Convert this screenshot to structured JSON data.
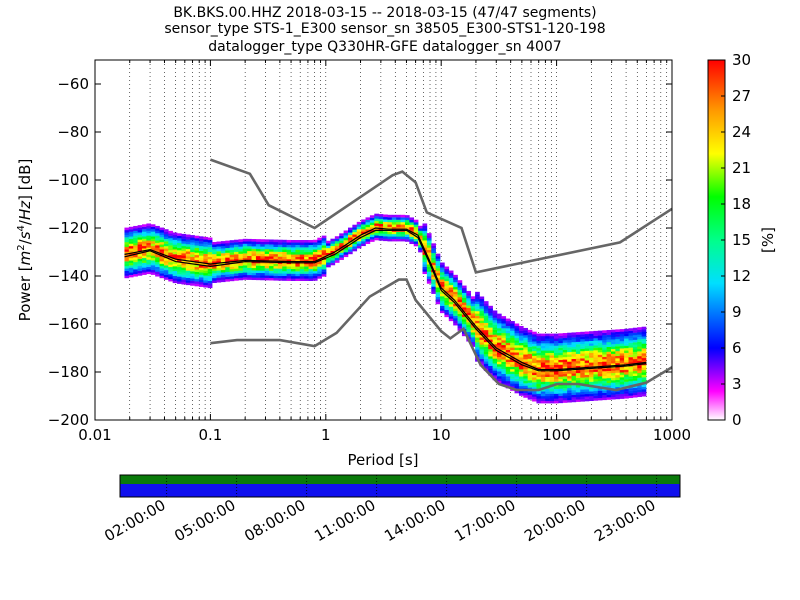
{
  "chart_data": {
    "type": "heatmap",
    "title": {
      "line1": "BK.BKS.00.HHZ   2018-03-15 -- 2018-03-15  (47/47 segments)",
      "line2": "sensor_type STS-1_E300 sensor_sn 38505_E300-STS1-120-198",
      "line3": "datalogger_type Q330HR-GFE datalogger_sn 4007"
    },
    "xlabel": "Period [s]",
    "ylabel": "Power [m²/s⁴/Hz] [dB]",
    "ylabel_parts": {
      "prefix": "Power ",
      "unit_open": "[",
      "m": "m",
      "m_exp": "2",
      "slash1": "/",
      "s": "s",
      "s_exp": "4",
      "slash2": "/",
      "hz": "Hz",
      "unit_close": "]",
      "db": " [dB]"
    },
    "xscale": "log",
    "xlim": [
      0.01,
      1000
    ],
    "ylim": [
      -200,
      -50
    ],
    "x_ticks": [
      0.01,
      0.1,
      1,
      10,
      100,
      1000
    ],
    "x_tick_labels": [
      "0.01",
      "0.1",
      "1",
      "10",
      "100",
      "1000"
    ],
    "y_ticks": [
      -200,
      -180,
      -160,
      -140,
      -120,
      -100,
      -80,
      -60
    ],
    "y_tick_labels": [
      "−200",
      "−180",
      "−160",
      "−140",
      "−120",
      "−100",
      "−80",
      "−60"
    ],
    "grid": "dotted (x only)",
    "colorbar": {
      "label": "[%]",
      "range": [
        0,
        30
      ],
      "ticks": [
        0,
        3,
        6,
        9,
        12,
        15,
        18,
        21,
        24,
        27,
        30
      ],
      "tick_labels": [
        "0",
        "3",
        "6",
        "9",
        "12",
        "15",
        "18",
        "21",
        "24",
        "27",
        "30"
      ]
    },
    "noise_model_high": [
      [
        0.1,
        -91.5
      ],
      [
        0.22,
        -97.4
      ],
      [
        0.32,
        -110.5
      ],
      [
        0.8,
        -120
      ],
      [
        3.8,
        -98
      ],
      [
        4.6,
        -96.5
      ],
      [
        6,
        -101
      ],
      [
        7.5,
        -113.5
      ],
      [
        15,
        -120
      ],
      [
        20,
        -138.5
      ],
      [
        354,
        -126
      ],
      [
        1000,
        -112
      ]
    ],
    "noise_model_low": [
      [
        0.1,
        -168
      ],
      [
        0.17,
        -166.7
      ],
      [
        0.4,
        -166.7
      ],
      [
        0.8,
        -169.2
      ],
      [
        1.24,
        -163.7
      ],
      [
        2.4,
        -148.6
      ],
      [
        4.3,
        -141.5
      ],
      [
        5,
        -141.5
      ],
      [
        6,
        -150
      ],
      [
        10,
        -163
      ],
      [
        12,
        -166
      ],
      [
        15.6,
        -162
      ],
      [
        21.9,
        -177
      ],
      [
        31.6,
        -185
      ],
      [
        45,
        -187.5
      ],
      [
        70,
        -187.5
      ],
      [
        101,
        -185
      ],
      [
        154,
        -185
      ],
      [
        328,
        -187.5
      ],
      [
        600,
        -184.4
      ],
      [
        1000,
        -178
      ]
    ],
    "mode_line": [
      [
        0.018,
        -131
      ],
      [
        0.03,
        -129
      ],
      [
        0.05,
        -133
      ],
      [
        0.1,
        -135
      ],
      [
        0.2,
        -133.5
      ],
      [
        0.5,
        -134
      ],
      [
        0.8,
        -134
      ],
      [
        1.2,
        -130
      ],
      [
        2,
        -123
      ],
      [
        2.7,
        -120
      ],
      [
        3.5,
        -120.5
      ],
      [
        5,
        -120.5
      ],
      [
        6.3,
        -123
      ],
      [
        8,
        -134
      ],
      [
        10,
        -145
      ],
      [
        13,
        -150
      ],
      [
        20,
        -161
      ],
      [
        30,
        -170
      ],
      [
        50,
        -176
      ],
      [
        70,
        -179
      ],
      [
        100,
        -179
      ],
      [
        200,
        -178
      ],
      [
        400,
        -177
      ],
      [
        600,
        -176
      ]
    ],
    "mean_line": [
      [
        0.018,
        -132
      ],
      [
        0.03,
        -129.5
      ],
      [
        0.05,
        -134
      ],
      [
        0.1,
        -136
      ],
      [
        0.2,
        -134
      ],
      [
        0.5,
        -134.5
      ],
      [
        0.8,
        -134.5
      ],
      [
        1.2,
        -131
      ],
      [
        2,
        -124
      ],
      [
        2.7,
        -121
      ],
      [
        3.5,
        -121
      ],
      [
        5,
        -121
      ],
      [
        6.3,
        -124
      ],
      [
        8,
        -135
      ],
      [
        10,
        -146
      ],
      [
        13,
        -151
      ],
      [
        20,
        -162
      ],
      [
        30,
        -171
      ],
      [
        50,
        -177
      ],
      [
        70,
        -179.5
      ],
      [
        100,
        -179.5
      ],
      [
        200,
        -178.5
      ],
      [
        400,
        -177.5
      ],
      [
        600,
        -176.5
      ]
    ],
    "segment_bar": {
      "data_color": "#0a7a0a",
      "gap_color": "#1010ee",
      "tick_labels": [
        "02:00:00",
        "05:00:00",
        "08:00:00",
        "11:00:00",
        "14:00:00",
        "17:00:00",
        "20:00:00",
        "23:00:00"
      ]
    }
  },
  "colors": {
    "noise_model": "#666666",
    "mode_line": "#000000",
    "mean_line": "#000000"
  }
}
